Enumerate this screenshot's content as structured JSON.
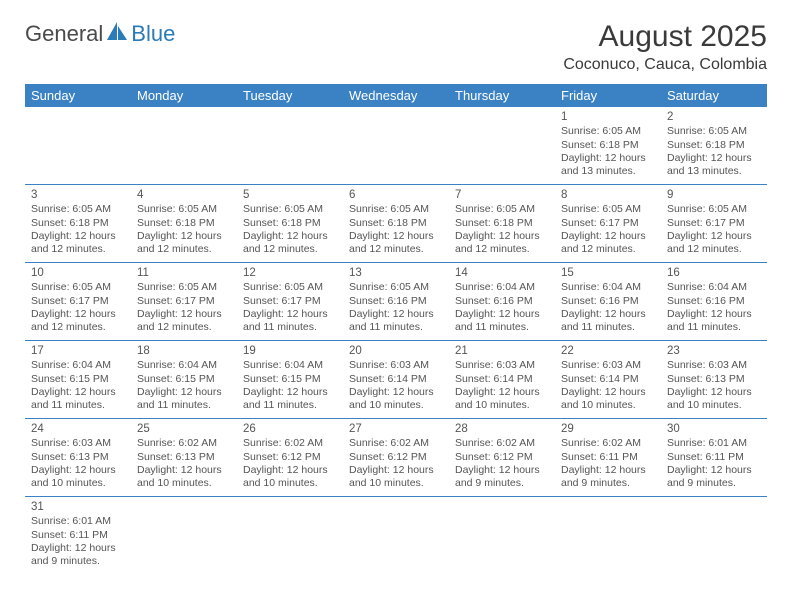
{
  "logo": {
    "text1": "General",
    "text2": "Blue"
  },
  "title": "August 2025",
  "location": "Coconuco, Cauca, Colombia",
  "colors": {
    "header_bg": "#3b82c4",
    "header_text": "#ffffff",
    "border": "#3b82c4",
    "body_text": "#555555",
    "title_text": "#3a3a3a",
    "logo_gray": "#4a4a4a",
    "logo_blue": "#2b7bb9",
    "page_bg": "#ffffff"
  },
  "typography": {
    "title_fontsize": 30,
    "location_fontsize": 16,
    "header_fontsize": 13,
    "cell_fontsize": 10.5,
    "daynum_fontsize": 11.5
  },
  "weekdays": [
    "Sunday",
    "Monday",
    "Tuesday",
    "Wednesday",
    "Thursday",
    "Friday",
    "Saturday"
  ],
  "weeks": [
    [
      null,
      null,
      null,
      null,
      null,
      {
        "n": "1",
        "sr": "Sunrise: 6:05 AM",
        "ss": "Sunset: 6:18 PM",
        "dl1": "Daylight: 12 hours",
        "dl2": "and 13 minutes."
      },
      {
        "n": "2",
        "sr": "Sunrise: 6:05 AM",
        "ss": "Sunset: 6:18 PM",
        "dl1": "Daylight: 12 hours",
        "dl2": "and 13 minutes."
      }
    ],
    [
      {
        "n": "3",
        "sr": "Sunrise: 6:05 AM",
        "ss": "Sunset: 6:18 PM",
        "dl1": "Daylight: 12 hours",
        "dl2": "and 12 minutes."
      },
      {
        "n": "4",
        "sr": "Sunrise: 6:05 AM",
        "ss": "Sunset: 6:18 PM",
        "dl1": "Daylight: 12 hours",
        "dl2": "and 12 minutes."
      },
      {
        "n": "5",
        "sr": "Sunrise: 6:05 AM",
        "ss": "Sunset: 6:18 PM",
        "dl1": "Daylight: 12 hours",
        "dl2": "and 12 minutes."
      },
      {
        "n": "6",
        "sr": "Sunrise: 6:05 AM",
        "ss": "Sunset: 6:18 PM",
        "dl1": "Daylight: 12 hours",
        "dl2": "and 12 minutes."
      },
      {
        "n": "7",
        "sr": "Sunrise: 6:05 AM",
        "ss": "Sunset: 6:18 PM",
        "dl1": "Daylight: 12 hours",
        "dl2": "and 12 minutes."
      },
      {
        "n": "8",
        "sr": "Sunrise: 6:05 AM",
        "ss": "Sunset: 6:17 PM",
        "dl1": "Daylight: 12 hours",
        "dl2": "and 12 minutes."
      },
      {
        "n": "9",
        "sr": "Sunrise: 6:05 AM",
        "ss": "Sunset: 6:17 PM",
        "dl1": "Daylight: 12 hours",
        "dl2": "and 12 minutes."
      }
    ],
    [
      {
        "n": "10",
        "sr": "Sunrise: 6:05 AM",
        "ss": "Sunset: 6:17 PM",
        "dl1": "Daylight: 12 hours",
        "dl2": "and 12 minutes."
      },
      {
        "n": "11",
        "sr": "Sunrise: 6:05 AM",
        "ss": "Sunset: 6:17 PM",
        "dl1": "Daylight: 12 hours",
        "dl2": "and 12 minutes."
      },
      {
        "n": "12",
        "sr": "Sunrise: 6:05 AM",
        "ss": "Sunset: 6:17 PM",
        "dl1": "Daylight: 12 hours",
        "dl2": "and 11 minutes."
      },
      {
        "n": "13",
        "sr": "Sunrise: 6:05 AM",
        "ss": "Sunset: 6:16 PM",
        "dl1": "Daylight: 12 hours",
        "dl2": "and 11 minutes."
      },
      {
        "n": "14",
        "sr": "Sunrise: 6:04 AM",
        "ss": "Sunset: 6:16 PM",
        "dl1": "Daylight: 12 hours",
        "dl2": "and 11 minutes."
      },
      {
        "n": "15",
        "sr": "Sunrise: 6:04 AM",
        "ss": "Sunset: 6:16 PM",
        "dl1": "Daylight: 12 hours",
        "dl2": "and 11 minutes."
      },
      {
        "n": "16",
        "sr": "Sunrise: 6:04 AM",
        "ss": "Sunset: 6:16 PM",
        "dl1": "Daylight: 12 hours",
        "dl2": "and 11 minutes."
      }
    ],
    [
      {
        "n": "17",
        "sr": "Sunrise: 6:04 AM",
        "ss": "Sunset: 6:15 PM",
        "dl1": "Daylight: 12 hours",
        "dl2": "and 11 minutes."
      },
      {
        "n": "18",
        "sr": "Sunrise: 6:04 AM",
        "ss": "Sunset: 6:15 PM",
        "dl1": "Daylight: 12 hours",
        "dl2": "and 11 minutes."
      },
      {
        "n": "19",
        "sr": "Sunrise: 6:04 AM",
        "ss": "Sunset: 6:15 PM",
        "dl1": "Daylight: 12 hours",
        "dl2": "and 11 minutes."
      },
      {
        "n": "20",
        "sr": "Sunrise: 6:03 AM",
        "ss": "Sunset: 6:14 PM",
        "dl1": "Daylight: 12 hours",
        "dl2": "and 10 minutes."
      },
      {
        "n": "21",
        "sr": "Sunrise: 6:03 AM",
        "ss": "Sunset: 6:14 PM",
        "dl1": "Daylight: 12 hours",
        "dl2": "and 10 minutes."
      },
      {
        "n": "22",
        "sr": "Sunrise: 6:03 AM",
        "ss": "Sunset: 6:14 PM",
        "dl1": "Daylight: 12 hours",
        "dl2": "and 10 minutes."
      },
      {
        "n": "23",
        "sr": "Sunrise: 6:03 AM",
        "ss": "Sunset: 6:13 PM",
        "dl1": "Daylight: 12 hours",
        "dl2": "and 10 minutes."
      }
    ],
    [
      {
        "n": "24",
        "sr": "Sunrise: 6:03 AM",
        "ss": "Sunset: 6:13 PM",
        "dl1": "Daylight: 12 hours",
        "dl2": "and 10 minutes."
      },
      {
        "n": "25",
        "sr": "Sunrise: 6:02 AM",
        "ss": "Sunset: 6:13 PM",
        "dl1": "Daylight: 12 hours",
        "dl2": "and 10 minutes."
      },
      {
        "n": "26",
        "sr": "Sunrise: 6:02 AM",
        "ss": "Sunset: 6:12 PM",
        "dl1": "Daylight: 12 hours",
        "dl2": "and 10 minutes."
      },
      {
        "n": "27",
        "sr": "Sunrise: 6:02 AM",
        "ss": "Sunset: 6:12 PM",
        "dl1": "Daylight: 12 hours",
        "dl2": "and 10 minutes."
      },
      {
        "n": "28",
        "sr": "Sunrise: 6:02 AM",
        "ss": "Sunset: 6:12 PM",
        "dl1": "Daylight: 12 hours",
        "dl2": "and 9 minutes."
      },
      {
        "n": "29",
        "sr": "Sunrise: 6:02 AM",
        "ss": "Sunset: 6:11 PM",
        "dl1": "Daylight: 12 hours",
        "dl2": "and 9 minutes."
      },
      {
        "n": "30",
        "sr": "Sunrise: 6:01 AM",
        "ss": "Sunset: 6:11 PM",
        "dl1": "Daylight: 12 hours",
        "dl2": "and 9 minutes."
      }
    ],
    [
      {
        "n": "31",
        "sr": "Sunrise: 6:01 AM",
        "ss": "Sunset: 6:11 PM",
        "dl1": "Daylight: 12 hours",
        "dl2": "and 9 minutes."
      },
      null,
      null,
      null,
      null,
      null,
      null
    ]
  ]
}
